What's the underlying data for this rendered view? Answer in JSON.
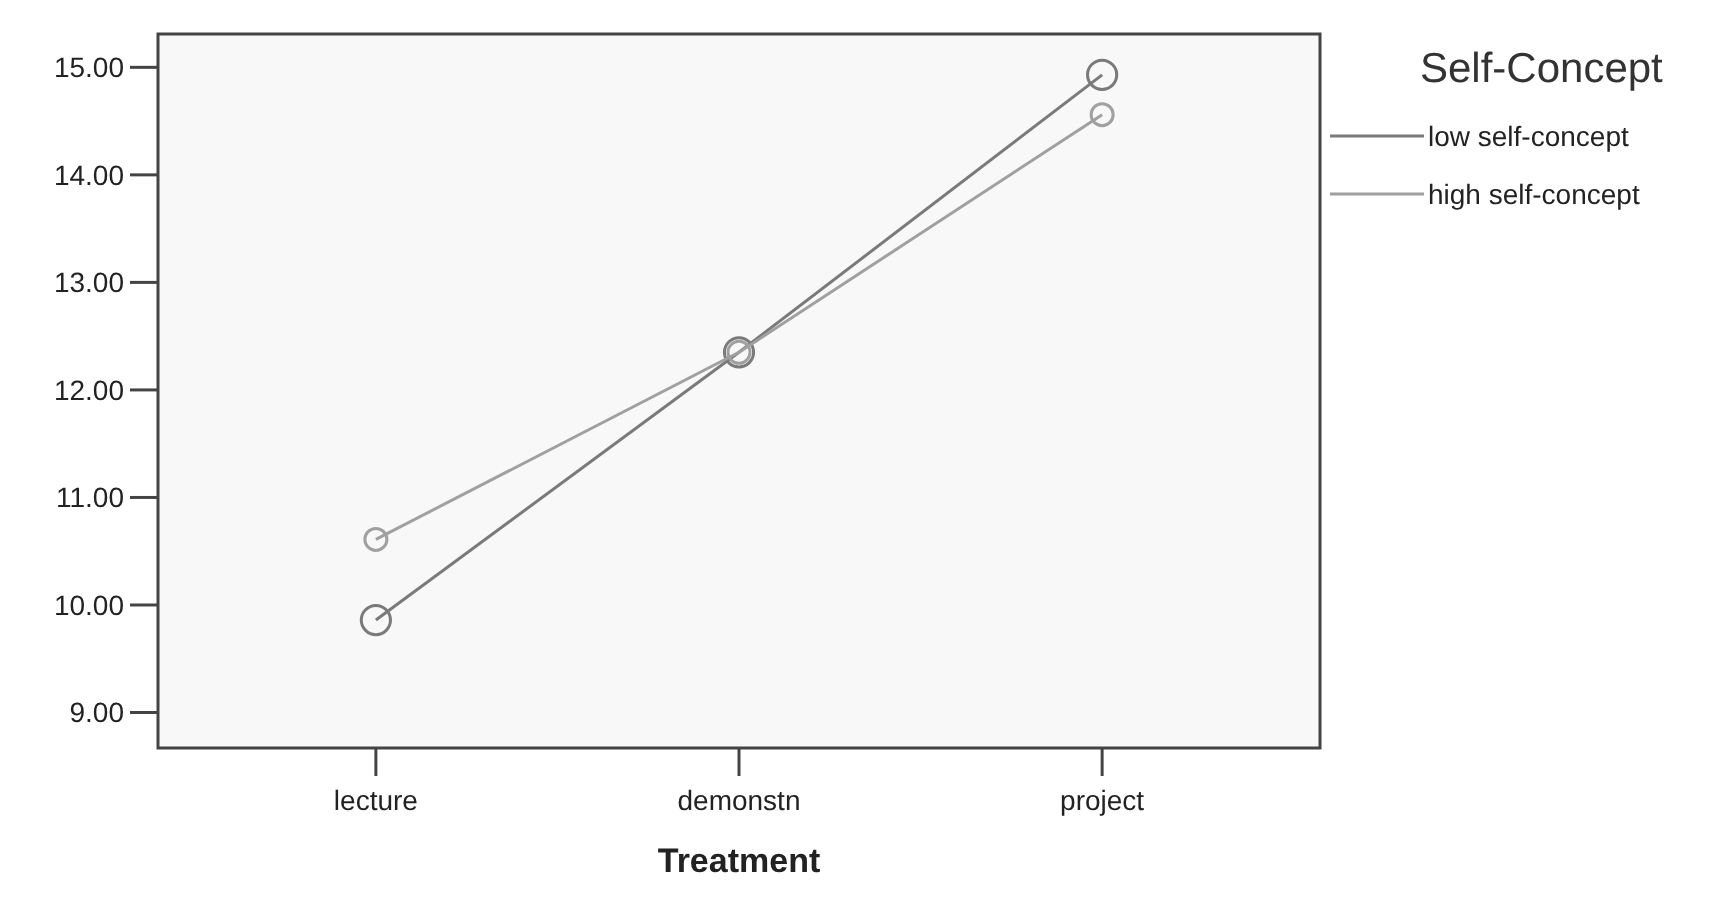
{
  "chart_data": {
    "type": "line",
    "xlabel": "Treatment",
    "legend_title": "Self-Concept",
    "categories": [
      "lecture",
      "demonstn",
      "project"
    ],
    "series": [
      {
        "name": "low self-concept",
        "color": "#7a7a7a",
        "values": [
          9.86,
          12.35,
          14.93
        ]
      },
      {
        "name": "high self-concept",
        "color": "#a0a0a0",
        "values": [
          10.61,
          12.35,
          14.56
        ]
      }
    ],
    "ylim": [
      8.67,
      15.31
    ],
    "yticks": [
      {
        "value": 9,
        "label": "9.00"
      },
      {
        "value": 10,
        "label": "10.00"
      },
      {
        "value": 11,
        "label": "11.00"
      },
      {
        "value": 12,
        "label": "12.00"
      },
      {
        "value": 13,
        "label": "13.00"
      },
      {
        "value": 14,
        "label": "14.00"
      },
      {
        "value": 15,
        "label": "15.00"
      }
    ],
    "legend": "top right",
    "marker": "circle",
    "line_style": "solid",
    "grid": false
  }
}
